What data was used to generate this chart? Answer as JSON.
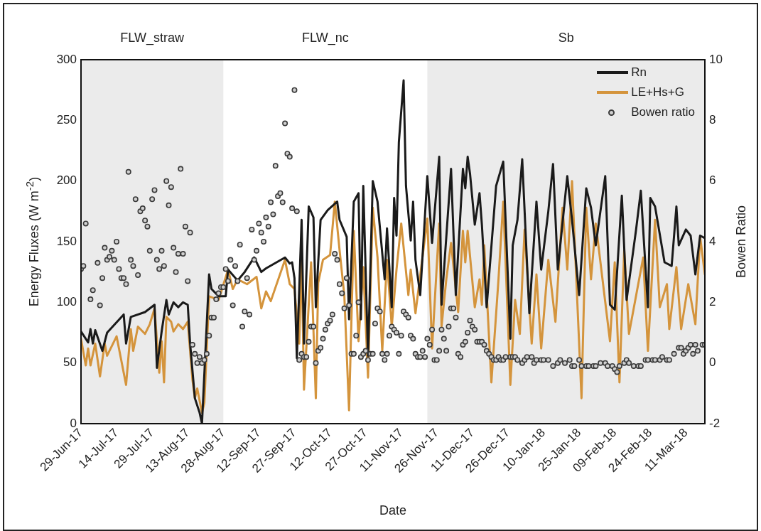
{
  "chart_data": {
    "type": "line",
    "xlabel": "Date",
    "ylabel": "Energy Fluxes (W m$^{-2}$)",
    "y2label": "Bowen Ratio",
    "legend": "top right",
    "xlim": [
      "2017-06-29",
      "2018-03-19"
    ],
    "xticks": [
      {
        "value": "2017-06-29",
        "label": "29-Jun-17"
      },
      {
        "value": "2017-07-14",
        "label": "14-Jul-17"
      },
      {
        "value": "2017-07-29",
        "label": "29-Jul-17"
      },
      {
        "value": "2017-08-13",
        "label": "13-Aug-17"
      },
      {
        "value": "2017-08-28",
        "label": "28-Aug-17"
      },
      {
        "value": "2017-09-12",
        "label": "12-Sep-17"
      },
      {
        "value": "2017-09-27",
        "label": "27-Sep-17"
      },
      {
        "value": "2017-10-12",
        "label": "12-Oct-17"
      },
      {
        "value": "2017-10-27",
        "label": "27-Oct-17"
      },
      {
        "value": "2017-11-11",
        "label": "11-Nov-17"
      },
      {
        "value": "2017-11-26",
        "label": "26-Nov-17"
      },
      {
        "value": "2017-12-11",
        "label": "11-Dec-17"
      },
      {
        "value": "2017-12-26",
        "label": "26-Dec-17"
      },
      {
        "value": "2018-01-10",
        "label": "10-Jan-18"
      },
      {
        "value": "2018-01-25",
        "label": "25-Jan-18"
      },
      {
        "value": "2018-02-09",
        "label": "09-Feb-18"
      },
      {
        "value": "2018-02-24",
        "label": "24-Feb-18"
      },
      {
        "value": "2018-03-11",
        "label": "11-Mar-18"
      }
    ],
    "ylim": [
      0,
      300
    ],
    "yticks": [
      0,
      50,
      100,
      150,
      200,
      250,
      300
    ],
    "annotations": [
      "FLW_nc"
    ],
    "y2lim": [
      -2,
      10
    ],
    "y2ticks": [
      -2,
      0,
      2,
      4,
      6,
      8,
      10
    ],
    "bands": [
      {
        "axis": "x",
        "from": "2017-06-29",
        "to": "2017-08-28",
        "label": "FLW_straw",
        "color": "#ebebeb"
      },
      {
        "axis": "x",
        "from": "2017-11-22",
        "to": "2018-03-19",
        "label": "Sb",
        "color": "#ebebeb"
      }
    ],
    "series": [
      {
        "name": "Rn",
        "type": "line",
        "color": "#1a1a1a",
        "marker": "none",
        "x": [
          "2017-06-29",
          "2017-07-02",
          "2017-07-03",
          "2017-07-04",
          "2017-07-05",
          "2017-07-08",
          "2017-07-10",
          "2017-07-17",
          "2017-07-18",
          "2017-07-20",
          "2017-07-26",
          "2017-07-30",
          "2017-07-31",
          "2017-08-02",
          "2017-08-04",
          "2017-08-05",
          "2017-08-07",
          "2017-08-09",
          "2017-08-11",
          "2017-08-13",
          "2017-08-14",
          "2017-08-16",
          "2017-08-18",
          "2017-08-19",
          "2017-08-22",
          "2017-08-23",
          "2017-08-26",
          "2017-08-29",
          "2017-08-30",
          "2017-09-03",
          "2017-09-06",
          "2017-09-10",
          "2017-09-13",
          "2017-09-15",
          "2017-09-23",
          "2017-09-25",
          "2017-09-26",
          "2017-09-27",
          "2017-09-28",
          "2017-09-30",
          "2017-10-01",
          "2017-10-03",
          "2017-10-05",
          "2017-10-06",
          "2017-10-07",
          "2017-10-08",
          "2017-10-11",
          "2017-10-15",
          "2017-10-16",
          "2017-10-19",
          "2017-10-20",
          "2017-10-22",
          "2017-10-24",
          "2017-10-25",
          "2017-10-26",
          "2017-10-28",
          "2017-10-30",
          "2017-11-01",
          "2017-11-04",
          "2017-11-05",
          "2017-11-07",
          "2017-11-08",
          "2017-11-09",
          "2017-11-10",
          "2017-11-12",
          "2017-11-13",
          "2017-11-15",
          "2017-11-16",
          "2017-11-17",
          "2017-11-19",
          "2017-11-22",
          "2017-11-24",
          "2017-11-27",
          "2017-11-28",
          "2017-12-02",
          "2017-12-04",
          "2017-12-07",
          "2017-12-08",
          "2017-12-09",
          "2017-12-10",
          "2017-12-12",
          "2017-12-14",
          "2017-12-15",
          "2017-12-17",
          "2017-12-21",
          "2017-12-24",
          "2017-12-27",
          "2017-12-28",
          "2017-12-30",
          "2018-01-01",
          "2018-01-04",
          "2018-01-07",
          "2018-01-09",
          "2018-01-12",
          "2018-01-14",
          "2018-01-16",
          "2018-01-20",
          "2018-01-22",
          "2018-01-25",
          "2018-01-28",
          "2018-01-30",
          "2018-02-01",
          "2018-02-05",
          "2018-02-07",
          "2018-02-09",
          "2018-02-12",
          "2018-02-14",
          "2018-02-18",
          "2018-02-20",
          "2018-02-23",
          "2018-02-24",
          "2018-02-26",
          "2018-03-02",
          "2018-03-05",
          "2018-03-07",
          "2018-03-08",
          "2018-03-11",
          "2018-03-13",
          "2018-03-15",
          "2018-03-17",
          "2018-03-19"
        ],
        "values": [
          76,
          67,
          78,
          66,
          77,
          60,
          75,
          90,
          66,
          88,
          92,
          98,
          46,
          76,
          102,
          90,
          100,
          96,
          100,
          98,
          66,
          21,
          9,
          0,
          123,
          111,
          105,
          105,
          127,
          118,
          125,
          137,
          125,
          128,
          137,
          132,
          133,
          120,
          54,
          168,
          66,
          179,
          170,
          96,
          133,
          168,
          176,
          183,
          168,
          154,
          86,
          183,
          190,
          86,
          196,
          56,
          200,
          183,
          119,
          161,
          96,
          186,
          155,
          232,
          283,
          196,
          151,
          183,
          135,
          106,
          204,
          149,
          220,
          98,
          210,
          106,
          210,
          194,
          220,
          206,
          164,
          190,
          164,
          96,
          196,
          216,
          70,
          147,
          168,
          218,
          91,
          183,
          127,
          175,
          214,
          127,
          204,
          168,
          106,
          194,
          178,
          147,
          204,
          98,
          94,
          188,
          102,
          160,
          192,
          96,
          186,
          179,
          133,
          130,
          179,
          147,
          160,
          155,
          123,
          155,
          153
        ]
      },
      {
        "name": "LE+Hs+G",
        "type": "line",
        "color": "#d4943c",
        "marker": "none",
        "x": [
          "2017-06-29",
          "2017-07-01",
          "2017-07-02",
          "2017-07-03",
          "2017-07-05",
          "2017-07-07",
          "2017-07-09",
          "2017-07-10",
          "2017-07-14",
          "2017-07-16",
          "2017-07-18",
          "2017-07-20",
          "2017-07-21",
          "2017-07-23",
          "2017-07-26",
          "2017-07-28",
          "2017-07-30",
          "2017-08-01",
          "2017-08-02",
          "2017-08-03",
          "2017-08-04",
          "2017-08-06",
          "2017-08-07",
          "2017-08-09",
          "2017-08-11",
          "2017-08-13",
          "2017-08-15",
          "2017-08-16",
          "2017-08-17",
          "2017-08-19",
          "2017-08-20",
          "2017-08-22",
          "2017-08-26",
          "2017-08-30",
          "2017-09-01",
          "2017-09-03",
          "2017-09-07",
          "2017-09-11",
          "2017-09-13",
          "2017-09-15",
          "2017-09-17",
          "2017-09-23",
          "2017-09-25",
          "2017-09-27",
          "2017-09-29",
          "2017-09-30",
          "2017-10-01",
          "2017-10-04",
          "2017-10-06",
          "2017-10-07",
          "2017-10-09",
          "2017-10-12",
          "2017-10-14",
          "2017-10-16",
          "2017-10-18",
          "2017-10-20",
          "2017-10-22",
          "2017-10-24",
          "2017-10-26",
          "2017-10-28",
          "2017-10-30",
          "2017-11-01",
          "2017-11-03",
          "2017-11-05",
          "2017-11-07",
          "2017-11-09",
          "2017-11-11",
          "2017-11-14",
          "2017-11-15",
          "2017-11-17",
          "2017-11-22",
          "2017-11-24",
          "2017-11-27",
          "2017-11-28",
          "2017-11-30",
          "2017-12-02",
          "2017-12-05",
          "2017-12-07",
          "2017-12-08",
          "2017-12-09",
          "2017-12-12",
          "2017-12-14",
          "2017-12-15",
          "2017-12-16",
          "2017-12-19",
          "2017-12-22",
          "2017-12-24",
          "2017-12-27",
          "2017-12-29",
          "2017-12-31",
          "2018-01-02",
          "2018-01-05",
          "2018-01-07",
          "2018-01-09",
          "2018-01-12",
          "2018-01-15",
          "2018-01-18",
          "2018-01-20",
          "2018-01-22",
          "2018-01-26",
          "2018-01-28",
          "2018-01-30",
          "2018-02-01",
          "2018-02-07",
          "2018-02-09",
          "2018-02-11",
          "2018-02-13",
          "2018-02-15",
          "2018-02-21",
          "2018-02-23",
          "2018-02-26",
          "2018-02-28",
          "2018-03-03",
          "2018-03-04",
          "2018-03-07",
          "2018-03-09",
          "2018-03-12",
          "2018-03-15",
          "2018-03-17",
          "2018-03-19"
        ],
        "values": [
          70,
          48,
          62,
          48,
          66,
          39,
          66,
          56,
          72,
          52,
          32,
          78,
          60,
          80,
          74,
          82,
          95,
          42,
          68,
          34,
          88,
          84,
          76,
          82,
          78,
          84,
          36,
          21,
          29,
          9,
          17,
          105,
          102,
          127,
          111,
          119,
          115,
          121,
          95,
          109,
          101,
          135,
          115,
          111,
          66,
          141,
          28,
          133,
          21,
          116,
          135,
          139,
          183,
          143,
          106,
          11,
          159,
          68,
          129,
          38,
          178,
          137,
          60,
          135,
          80,
          127,
          165,
          106,
          127,
          91,
          169,
          62,
          165,
          80,
          119,
          149,
          92,
          159,
          133,
          159,
          96,
          119,
          98,
          147,
          34,
          119,
          183,
          32,
          102,
          74,
          160,
          66,
          123,
          62,
          135,
          84,
          178,
          127,
          200,
          21,
          178,
          119,
          165,
          68,
          133,
          34,
          143,
          74,
          137,
          60,
          168,
          96,
          115,
          78,
          129,
          78,
          115,
          82,
          154,
          123
        ]
      },
      {
        "name": "Bowen ratio",
        "type": "scatter",
        "axis": "y2",
        "color": "#3a3a3a",
        "marker": "circle",
        "x": [
          "2017-06-29",
          "2017-06-30",
          "2017-07-01",
          "2017-07-03",
          "2017-07-04",
          "2017-07-06",
          "2017-07-07",
          "2017-07-08",
          "2017-07-09",
          "2017-07-10",
          "2017-07-11",
          "2017-07-12",
          "2017-07-13",
          "2017-07-14",
          "2017-07-15",
          "2017-07-16",
          "2017-07-17",
          "2017-07-18",
          "2017-07-19",
          "2017-07-20",
          "2017-07-21",
          "2017-07-22",
          "2017-07-23",
          "2017-07-24",
          "2017-07-25",
          "2017-07-26",
          "2017-07-27",
          "2017-07-28",
          "2017-07-29",
          "2017-07-30",
          "2017-07-31",
          "2017-08-01",
          "2017-08-02",
          "2017-08-03",
          "2017-08-04",
          "2017-08-05",
          "2017-08-06",
          "2017-08-07",
          "2017-08-08",
          "2017-08-09",
          "2017-08-10",
          "2017-08-11",
          "2017-08-12",
          "2017-08-13",
          "2017-08-14",
          "2017-08-15",
          "2017-08-16",
          "2017-08-17",
          "2017-08-18",
          "2017-08-19",
          "2017-08-20",
          "2017-08-21",
          "2017-08-22",
          "2017-08-23",
          "2017-08-24",
          "2017-08-25",
          "2017-08-26",
          "2017-08-27",
          "2017-08-28",
          "2017-08-29",
          "2017-08-30",
          "2017-08-31",
          "2017-09-01",
          "2017-09-02",
          "2017-09-03",
          "2017-09-04",
          "2017-09-05",
          "2017-09-06",
          "2017-09-07",
          "2017-09-08",
          "2017-09-09",
          "2017-09-10",
          "2017-09-11",
          "2017-09-12",
          "2017-09-13",
          "2017-09-14",
          "2017-09-15",
          "2017-09-16",
          "2017-09-17",
          "2017-09-18",
          "2017-09-19",
          "2017-09-20",
          "2017-09-21",
          "2017-09-22",
          "2017-09-23",
          "2017-09-24",
          "2017-09-25",
          "2017-09-26",
          "2017-09-27",
          "2017-09-28",
          "2017-09-29",
          "2017-09-30",
          "2017-10-01",
          "2017-10-02",
          "2017-10-03",
          "2017-10-04",
          "2017-10-05",
          "2017-10-06",
          "2017-10-07",
          "2017-10-08",
          "2017-10-09",
          "2017-10-10",
          "2017-10-11",
          "2017-10-12",
          "2017-10-13",
          "2017-10-14",
          "2017-10-15",
          "2017-10-16",
          "2017-10-17",
          "2017-10-18",
          "2017-10-19",
          "2017-10-20",
          "2017-10-21",
          "2017-10-22",
          "2017-10-23",
          "2017-10-24",
          "2017-10-25",
          "2017-10-26",
          "2017-10-27",
          "2017-10-28",
          "2017-10-29",
          "2017-10-30",
          "2017-10-31",
          "2017-11-01",
          "2017-11-02",
          "2017-11-03",
          "2017-11-04",
          "2017-11-05",
          "2017-11-06",
          "2017-11-07",
          "2017-11-08",
          "2017-11-09",
          "2017-11-10",
          "2017-11-11",
          "2017-11-12",
          "2017-11-13",
          "2017-11-14",
          "2017-11-15",
          "2017-11-16",
          "2017-11-17",
          "2017-11-18",
          "2017-11-19",
          "2017-11-20",
          "2017-11-21",
          "2017-11-22",
          "2017-11-23",
          "2017-11-24",
          "2017-11-25",
          "2017-11-26",
          "2017-11-27",
          "2017-11-28",
          "2017-11-29",
          "2017-11-30",
          "2017-12-01",
          "2017-12-02",
          "2017-12-03",
          "2017-12-04",
          "2017-12-05",
          "2017-12-06",
          "2017-12-07",
          "2017-12-08",
          "2017-12-09",
          "2017-12-10",
          "2017-12-11",
          "2017-12-12",
          "2017-12-13",
          "2017-12-14",
          "2017-12-15",
          "2017-12-16",
          "2017-12-17",
          "2017-12-18",
          "2017-12-19",
          "2017-12-20",
          "2017-12-21",
          "2017-12-22",
          "2017-12-23",
          "2017-12-24",
          "2017-12-25",
          "2017-12-27",
          "2017-12-28",
          "2017-12-29",
          "2017-12-30",
          "2018-01-01",
          "2018-01-02",
          "2018-01-03",
          "2018-01-05",
          "2018-01-06",
          "2018-01-07",
          "2018-01-09",
          "2018-01-10",
          "2018-01-12",
          "2018-01-14",
          "2018-01-16",
          "2018-01-17",
          "2018-01-19",
          "2018-01-21",
          "2018-01-22",
          "2018-01-23",
          "2018-01-25",
          "2018-01-26",
          "2018-01-28",
          "2018-01-29",
          "2018-01-31",
          "2018-02-01",
          "2018-02-03",
          "2018-02-05",
          "2018-02-06",
          "2018-02-08",
          "2018-02-09",
          "2018-02-10",
          "2018-02-11",
          "2018-02-13",
          "2018-02-14",
          "2018-02-15",
          "2018-02-17",
          "2018-02-19",
          "2018-02-20",
          "2018-02-22",
          "2018-02-23",
          "2018-02-25",
          "2018-02-26",
          "2018-02-28",
          "2018-03-01",
          "2018-03-03",
          "2018-03-04",
          "2018-03-06",
          "2018-03-08",
          "2018-03-09",
          "2018-03-10",
          "2018-03-11",
          "2018-03-12",
          "2018-03-13",
          "2018-03-14",
          "2018-03-15",
          "2018-03-16",
          "2018-03-18",
          "2018-03-19"
        ],
        "values": [
          3.1,
          3.2,
          4.6,
          2.1,
          2.4,
          3.3,
          1.9,
          2.8,
          3.8,
          3.4,
          3.5,
          3.7,
          3.4,
          4.0,
          3.1,
          2.8,
          2.8,
          2.6,
          6.3,
          3.4,
          3.2,
          5.4,
          2.9,
          5.0,
          5.1,
          4.7,
          4.5,
          3.7,
          5.4,
          5.7,
          3.4,
          3.1,
          3.7,
          3.2,
          6.0,
          5.2,
          5.8,
          3.8,
          3.0,
          3.6,
          6.4,
          3.6,
          4.5,
          2.7,
          4.3,
          0.6,
          0.3,
          0.0,
          0.2,
          0.0,
          0.1,
          0.3,
          0.9,
          1.5,
          1.5,
          2.1,
          2.3,
          2.5,
          2.5,
          3.1,
          2.7,
          3.4,
          1.9,
          3.2,
          2.7,
          3.9,
          1.2,
          1.7,
          2.8,
          1.6,
          4.4,
          3.4,
          3.7,
          4.6,
          4.3,
          4.0,
          4.8,
          4.5,
          5.3,
          4.9,
          6.5,
          5.5,
          5.6,
          5.3,
          7.9,
          6.9,
          6.8,
          5.1,
          9.0,
          5.0,
          0.1,
          0.3,
          0.2,
          0.2,
          0.7,
          1.2,
          1.2,
          0.0,
          0.4,
          0.5,
          0.8,
          1.1,
          1.3,
          1.4,
          1.6,
          3.6,
          3.4,
          2.6,
          2.3,
          1.8,
          2.8,
          1.9,
          0.3,
          0.3,
          0.9,
          2.0,
          0.2,
          0.3,
          0.4,
          0.1,
          0.3,
          0.3,
          1.3,
          1.8,
          1.7,
          0.3,
          0.1,
          0.3,
          0.9,
          1.2,
          1.1,
          1.0,
          0.3,
          0.9,
          1.7,
          1.6,
          1.5,
          0.9,
          0.8,
          0.3,
          0.2,
          0.2,
          0.4,
          0.2,
          0.8,
          0.6,
          1.1,
          0.1,
          0.1,
          0.4,
          1.1,
          0.8,
          0.4,
          1.2,
          1.8,
          1.8,
          1.5,
          0.3,
          0.2,
          0.6,
          0.7,
          1.0,
          1.4,
          1.2,
          1.1,
          0.7,
          0.7,
          0.7,
          0.6,
          0.4,
          0.3,
          0.2,
          0.1,
          0.1,
          0.2,
          0.1,
          0.1,
          0.2,
          0.2,
          0.2,
          0.2,
          0.1,
          0.0,
          0.1,
          0.2,
          0.2,
          0.0,
          0.1,
          0.1,
          0.1,
          0.1,
          -0.1,
          0.0,
          0.1,
          0.0,
          0.1,
          -0.1,
          -0.1,
          0.1,
          -0.1,
          -0.1,
          -0.1,
          -0.1,
          -0.1,
          0.0,
          0.0,
          -0.1,
          -0.1,
          -0.2,
          -0.3,
          -0.1,
          0.0,
          0.1,
          0.0,
          -0.1,
          -0.1,
          -0.1,
          0.1,
          0.1,
          0.1,
          0.1,
          0.1,
          0.2,
          0.1,
          0.1,
          0.3,
          0.5,
          0.5,
          0.3,
          0.4,
          0.5,
          0.6,
          0.3,
          0.6,
          0.4,
          0.6,
          0.6
        ]
      }
    ]
  }
}
